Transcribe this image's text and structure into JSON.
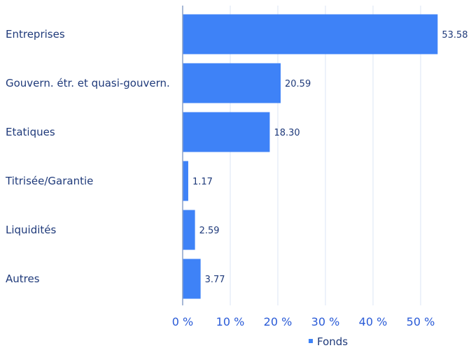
{
  "chart_data": {
    "type": "bar",
    "orientation": "horizontal",
    "categories": [
      "Entreprises",
      "Gouvern. étr. et quasi-gouvern.",
      "Etatiques",
      "Titrisée/Garantie",
      "Liquidités",
      "Autres"
    ],
    "series": [
      {
        "name": "Fonds",
        "values": [
          53.58,
          20.59,
          18.3,
          1.17,
          2.59,
          3.77
        ],
        "value_labels": [
          "53.58",
          "20.59",
          "18.30",
          "1.17",
          "2.59",
          "3.77"
        ],
        "color": "#3e82f7"
      }
    ],
    "xlim": [
      0,
      60
    ],
    "xticks": [
      0,
      10,
      20,
      30,
      40,
      50
    ],
    "xtick_labels": [
      "0 %",
      "10 %",
      "20 %",
      "30 %",
      "40 %",
      "50 %"
    ],
    "grid": "vertical",
    "legend": "bottom-center",
    "colors": {
      "bar": "#3e82f7",
      "grid": "#dbe6f5",
      "axis": "#8aa0c8",
      "text": "#1f3a7a",
      "tick_text": "#2a5bd7"
    }
  }
}
